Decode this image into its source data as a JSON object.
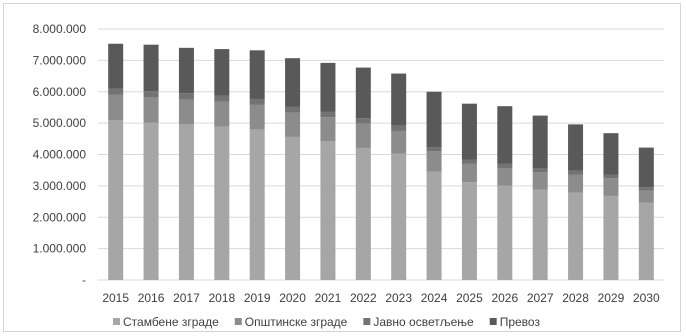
{
  "chart_data": {
    "type": "bar",
    "stacked": true,
    "categories": [
      "2015",
      "2016",
      "2017",
      "2018",
      "2019",
      "2020",
      "2021",
      "2022",
      "2023",
      "2024",
      "2025",
      "2026",
      "2027",
      "2028",
      "2029",
      "2030"
    ],
    "series": [
      {
        "name": "Стамбене зграде",
        "color": "#a6a6a6",
        "values": [
          5100000,
          5020000,
          4960000,
          4890000,
          4800000,
          4560000,
          4420000,
          4210000,
          4030000,
          3460000,
          3120000,
          3010000,
          2880000,
          2790000,
          2680000,
          2460000
        ]
      },
      {
        "name": "Општинске зграде",
        "color": "#8c8c8c",
        "values": [
          800000,
          800000,
          790000,
          790000,
          780000,
          780000,
          770000,
          770000,
          720000,
          640000,
          580000,
          560000,
          560000,
          560000,
          560000,
          390000
        ]
      },
      {
        "name": "Јавно осветљење",
        "color": "#737373",
        "values": [
          200000,
          200000,
          200000,
          190000,
          190000,
          190000,
          180000,
          180000,
          170000,
          140000,
          140000,
          130000,
          130000,
          130000,
          110000,
          110000
        ]
      },
      {
        "name": "Превоз",
        "color": "#595959",
        "values": [
          1430000,
          1480000,
          1450000,
          1490000,
          1550000,
          1540000,
          1550000,
          1610000,
          1660000,
          1760000,
          1780000,
          1840000,
          1670000,
          1480000,
          1330000,
          1260000
        ]
      }
    ],
    "y_ticks": [
      "-",
      "1.000.000",
      "2.000.000",
      "3.000.000",
      "4.000.000",
      "5.000.000",
      "6.000.000",
      "7.000.000",
      "8.000.000"
    ],
    "ylim": [
      0,
      8000000
    ],
    "grid": true,
    "legend_position": "bottom",
    "title": "",
    "xlabel": "",
    "ylabel": ""
  }
}
